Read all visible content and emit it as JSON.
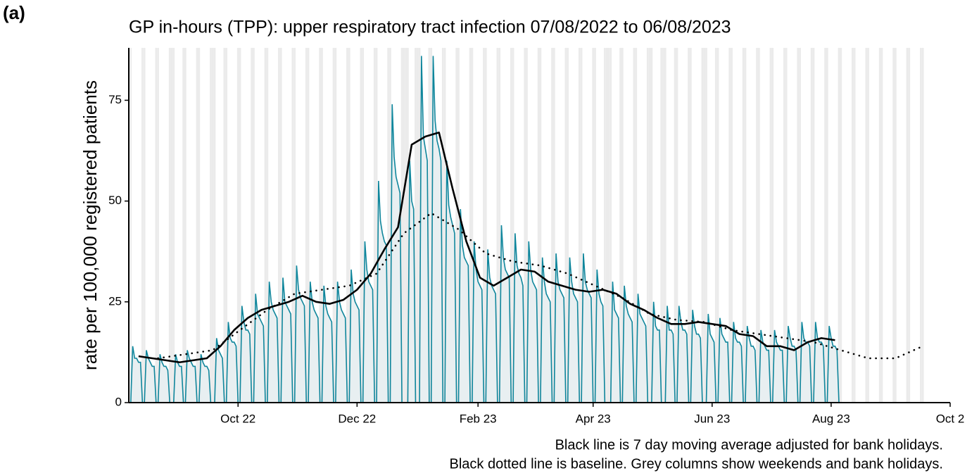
{
  "chart_data": {
    "type": "line",
    "panel_label": "(a)",
    "title": "GP in-hours (TPP): upper respiratory tract infection 07/08/2022 to 06/08/2023",
    "y_label": "rate per 100,000 registered patients",
    "notes": [
      "Black line is 7 day moving average adjusted for bank holidays.",
      "Black dotted line is baseline. Grey columns show weekends and bank holidays."
    ],
    "xlim": [
      "2022-08-06",
      "2023-10-01"
    ],
    "xticks": [
      {
        "value": "2022-10-01",
        "label": "Oct 22"
      },
      {
        "value": "2022-12-01",
        "label": "Dec 22"
      },
      {
        "value": "2023-02-01",
        "label": "Feb 23"
      },
      {
        "value": "2023-04-01",
        "label": "Apr 23"
      },
      {
        "value": "2023-06-01",
        "label": "Jun 23"
      },
      {
        "value": "2023-08-01",
        "label": "Aug 23"
      },
      {
        "value": "2023-10-01",
        "label": "Oct 2"
      }
    ],
    "ylim": [
      0,
      88
    ],
    "yticks": [
      0,
      25,
      50,
      75
    ],
    "shade_color": "#ebebeb",
    "series": [
      {
        "color": "#0f869c",
        "style": "daily",
        "x": [
          "2022-08-07",
          "2022-08-08",
          "2022-08-09",
          "2022-08-10",
          "2022-08-11",
          "2022-08-12",
          "2022-08-13",
          "2022-08-14",
          "2022-08-15",
          "2022-08-16",
          "2022-08-17",
          "2022-08-18",
          "2022-08-19",
          "2022-08-20",
          "2022-08-21",
          "2022-08-22",
          "2022-08-23",
          "2022-08-24",
          "2022-08-25",
          "2022-08-26",
          "2022-08-27",
          "2022-08-28",
          "2022-08-29",
          "2022-08-30",
          "2022-08-31",
          "2022-09-01",
          "2022-09-02",
          "2022-09-03",
          "2022-09-04",
          "2022-09-05",
          "2022-09-06",
          "2022-09-07",
          "2022-09-08",
          "2022-09-09",
          "2022-09-10",
          "2022-09-11",
          "2022-09-12",
          "2022-09-13",
          "2022-09-14",
          "2022-09-15",
          "2022-09-16",
          "2022-09-17",
          "2022-09-18",
          "2022-09-19",
          "2022-09-20",
          "2022-09-21",
          "2022-09-22",
          "2022-09-23",
          "2022-09-24",
          "2022-09-25",
          "2022-09-26",
          "2022-09-27",
          "2022-09-28",
          "2022-09-29",
          "2022-09-30",
          "2022-10-01",
          "2022-10-02",
          "2022-10-03",
          "2022-10-04",
          "2022-10-05",
          "2022-10-06",
          "2022-10-07",
          "2022-10-08",
          "2022-10-09",
          "2022-10-10",
          "2022-10-11",
          "2022-10-12",
          "2022-10-13",
          "2022-10-14",
          "2022-10-15",
          "2022-10-16",
          "2022-10-17",
          "2022-10-18",
          "2022-10-19",
          "2022-10-20",
          "2022-10-21",
          "2022-10-22",
          "2022-10-23",
          "2022-10-24",
          "2022-10-25",
          "2022-10-26",
          "2022-10-27",
          "2022-10-28",
          "2022-10-29",
          "2022-10-30",
          "2022-10-31",
          "2022-11-01",
          "2022-11-02",
          "2022-11-03",
          "2022-11-04",
          "2022-11-05",
          "2022-11-06",
          "2022-11-07",
          "2022-11-08",
          "2022-11-09",
          "2022-11-10",
          "2022-11-11",
          "2022-11-12",
          "2022-11-13",
          "2022-11-14",
          "2022-11-15",
          "2022-11-16",
          "2022-11-17",
          "2022-11-18",
          "2022-11-19",
          "2022-11-20",
          "2022-11-21",
          "2022-11-22",
          "2022-11-23",
          "2022-11-24",
          "2022-11-25",
          "2022-11-26",
          "2022-11-27",
          "2022-11-28",
          "2022-11-29",
          "2022-11-30",
          "2022-12-01",
          "2022-12-02",
          "2022-12-03",
          "2022-12-04",
          "2022-12-05",
          "2022-12-06",
          "2022-12-07",
          "2022-12-08",
          "2022-12-09",
          "2022-12-10",
          "2022-12-11",
          "2022-12-12",
          "2022-12-13",
          "2022-12-14",
          "2022-12-15",
          "2022-12-16",
          "2022-12-17",
          "2022-12-18",
          "2022-12-19",
          "2022-12-20",
          "2022-12-21",
          "2022-12-22",
          "2022-12-23",
          "2022-12-24",
          "2022-12-25",
          "2022-12-26",
          "2022-12-27",
          "2022-12-28",
          "2022-12-29",
          "2022-12-30",
          "2022-12-31",
          "2023-01-01",
          "2023-01-02",
          "2023-01-03",
          "2023-01-04",
          "2023-01-05",
          "2023-01-06",
          "2023-01-07",
          "2023-01-08",
          "2023-01-09",
          "2023-01-10",
          "2023-01-11",
          "2023-01-12",
          "2023-01-13",
          "2023-01-14",
          "2023-01-15",
          "2023-01-16",
          "2023-01-17",
          "2023-01-18",
          "2023-01-19",
          "2023-01-20",
          "2023-01-21",
          "2023-01-22",
          "2023-01-23",
          "2023-01-24",
          "2023-01-25",
          "2023-01-26",
          "2023-01-27",
          "2023-01-28",
          "2023-01-29",
          "2023-01-30",
          "2023-01-31",
          "2023-02-01",
          "2023-02-02",
          "2023-02-03",
          "2023-02-04",
          "2023-02-05",
          "2023-02-06",
          "2023-02-07",
          "2023-02-08",
          "2023-02-09",
          "2023-02-10",
          "2023-02-11",
          "2023-02-12",
          "2023-02-13",
          "2023-02-14",
          "2023-02-15",
          "2023-02-16",
          "2023-02-17",
          "2023-02-18",
          "2023-02-19",
          "2023-02-20",
          "2023-02-21",
          "2023-02-22",
          "2023-02-23",
          "2023-02-24",
          "2023-02-25",
          "2023-02-26",
          "2023-02-27",
          "2023-02-28",
          "2023-03-01",
          "2023-03-02",
          "2023-03-03",
          "2023-03-04",
          "2023-03-05",
          "2023-03-06",
          "2023-03-07",
          "2023-03-08",
          "2023-03-09",
          "2023-03-10",
          "2023-03-11",
          "2023-03-12",
          "2023-03-13",
          "2023-03-14",
          "2023-03-15",
          "2023-03-16",
          "2023-03-17",
          "2023-03-18",
          "2023-03-19",
          "2023-03-20",
          "2023-03-21",
          "2023-03-22",
          "2023-03-23",
          "2023-03-24",
          "2023-03-25",
          "2023-03-26",
          "2023-03-27",
          "2023-03-28",
          "2023-03-29",
          "2023-03-30",
          "2023-03-31",
          "2023-04-01",
          "2023-04-02",
          "2023-04-03",
          "2023-04-04",
          "2023-04-05",
          "2023-04-06",
          "2023-04-07",
          "2023-04-08",
          "2023-04-09",
          "2023-04-10",
          "2023-04-11",
          "2023-04-12",
          "2023-04-13",
          "2023-04-14",
          "2023-04-15",
          "2023-04-16",
          "2023-04-17",
          "2023-04-18",
          "2023-04-19",
          "2023-04-20",
          "2023-04-21",
          "2023-04-22",
          "2023-04-23",
          "2023-04-24",
          "2023-04-25",
          "2023-04-26",
          "2023-04-27",
          "2023-04-28",
          "2023-04-29",
          "2023-04-30",
          "2023-05-01",
          "2023-05-02",
          "2023-05-03",
          "2023-05-04",
          "2023-05-05",
          "2023-05-06",
          "2023-05-07",
          "2023-05-08",
          "2023-05-09",
          "2023-05-10",
          "2023-05-11",
          "2023-05-12",
          "2023-05-13",
          "2023-05-14",
          "2023-05-15",
          "2023-05-16",
          "2023-05-17",
          "2023-05-18",
          "2023-05-19",
          "2023-05-20",
          "2023-05-21",
          "2023-05-22",
          "2023-05-23",
          "2023-05-24",
          "2023-05-25",
          "2023-05-26",
          "2023-05-27",
          "2023-05-28",
          "2023-05-29",
          "2023-05-30",
          "2023-05-31",
          "2023-06-01",
          "2023-06-02",
          "2023-06-03",
          "2023-06-04",
          "2023-06-05",
          "2023-06-06",
          "2023-06-07",
          "2023-06-08",
          "2023-06-09",
          "2023-06-10",
          "2023-06-11",
          "2023-06-12",
          "2023-06-13",
          "2023-06-14",
          "2023-06-15",
          "2023-06-16",
          "2023-06-17",
          "2023-06-18",
          "2023-06-19",
          "2023-06-20",
          "2023-06-21",
          "2023-06-22",
          "2023-06-23",
          "2023-06-24",
          "2023-06-25",
          "2023-06-26",
          "2023-06-27",
          "2023-06-28",
          "2023-06-29",
          "2023-06-30",
          "2023-07-01",
          "2023-07-02",
          "2023-07-03",
          "2023-07-04",
          "2023-07-05",
          "2023-07-06",
          "2023-07-07",
          "2023-07-08",
          "2023-07-09",
          "2023-07-10",
          "2023-07-11",
          "2023-07-12",
          "2023-07-13",
          "2023-07-14",
          "2023-07-15",
          "2023-07-16",
          "2023-07-17",
          "2023-07-18",
          "2023-07-19",
          "2023-07-20",
          "2023-07-21",
          "2023-07-22",
          "2023-07-23",
          "2023-07-24",
          "2023-07-25",
          "2023-07-26",
          "2023-07-27",
          "2023-07-28",
          "2023-07-29",
          "2023-07-30",
          "2023-07-31",
          "2023-08-01",
          "2023-08-02",
          "2023-08-03",
          "2023-08-04",
          "2023-08-05",
          "2023-08-06"
        ],
        "values": [
          0,
          14,
          11,
          11,
          10,
          10,
          0,
          0,
          13,
          11,
          10,
          9,
          9,
          0,
          0,
          12,
          10,
          9,
          9,
          8,
          0,
          0,
          0,
          12,
          10,
          9,
          9,
          0,
          0,
          13,
          11,
          10,
          9,
          9,
          0,
          0,
          12,
          10,
          9,
          9,
          8,
          0,
          0,
          0,
          16,
          13,
          12,
          11,
          0,
          0,
          20,
          16,
          15,
          15,
          14,
          0,
          0,
          24,
          20,
          18,
          18,
          17,
          0,
          0,
          27,
          22,
          21,
          20,
          19,
          0,
          0,
          30,
          25,
          23,
          22,
          21,
          0,
          0,
          31,
          25,
          24,
          23,
          22,
          0,
          0,
          34,
          28,
          26,
          25,
          24,
          0,
          0,
          30,
          25,
          23,
          22,
          21,
          0,
          0,
          29,
          24,
          22,
          21,
          20,
          0,
          0,
          30,
          25,
          23,
          22,
          21,
          0,
          0,
          33,
          27,
          25,
          24,
          23,
          0,
          0,
          40,
          33,
          30,
          29,
          28,
          0,
          0,
          55,
          45,
          42,
          40,
          39,
          0,
          0,
          74,
          61,
          56,
          54,
          52,
          0,
          0,
          0,
          0,
          60,
          50,
          48,
          0,
          0,
          0,
          86,
          66,
          63,
          60,
          0,
          0,
          86,
          70,
          65,
          63,
          60,
          0,
          0,
          60,
          49,
          46,
          44,
          42,
          0,
          0,
          48,
          39,
          36,
          35,
          34,
          0,
          0,
          40,
          33,
          30,
          29,
          28,
          0,
          0,
          38,
          31,
          29,
          28,
          27,
          0,
          0,
          44,
          36,
          33,
          32,
          31,
          0,
          0,
          42,
          34,
          32,
          31,
          29,
          0,
          0,
          40,
          33,
          30,
          29,
          28,
          0,
          0,
          36,
          30,
          27,
          26,
          25,
          0,
          0,
          37,
          30,
          28,
          27,
          26,
          0,
          0,
          36,
          30,
          27,
          26,
          25,
          0,
          0,
          37,
          30,
          28,
          27,
          26,
          0,
          0,
          33,
          27,
          25,
          24,
          0,
          0,
          0,
          0,
          30,
          23,
          22,
          21,
          0,
          0,
          29,
          24,
          22,
          21,
          20,
          0,
          0,
          27,
          22,
          21,
          20,
          19,
          0,
          0,
          0,
          25,
          19,
          18,
          18,
          0,
          0,
          0,
          24,
          18,
          18,
          17,
          0,
          0,
          24,
          20,
          18,
          18,
          17,
          0,
          0,
          23,
          19,
          17,
          17,
          16,
          0,
          0,
          0,
          22,
          17,
          16,
          15,
          0,
          0,
          21,
          17,
          16,
          15,
          15,
          0,
          0,
          20,
          16,
          15,
          15,
          14,
          0,
          0,
          19,
          16,
          14,
          14,
          13,
          0,
          0,
          18,
          15,
          14,
          13,
          13,
          0,
          0,
          18,
          15,
          14,
          13,
          13,
          0,
          0,
          19,
          16,
          14,
          14,
          13,
          0,
          0,
          20,
          16,
          15,
          15,
          14,
          0,
          0,
          20,
          16,
          15,
          15,
          14,
          0,
          0,
          19,
          16,
          14,
          14,
          13,
          0,
          0
        ]
      },
      {
        "color": "#000000",
        "style": "solid",
        "x": [
          "2022-08-11",
          "2022-08-18",
          "2022-08-25",
          "2022-09-01",
          "2022-09-08",
          "2022-09-15",
          "2022-09-22",
          "2022-09-29",
          "2022-10-06",
          "2022-10-13",
          "2022-10-20",
          "2022-10-27",
          "2022-11-03",
          "2022-11-10",
          "2022-11-17",
          "2022-11-24",
          "2022-12-01",
          "2022-12-08",
          "2022-12-15",
          "2022-12-22",
          "2022-12-29",
          "2023-01-05",
          "2023-01-12",
          "2023-01-19",
          "2023-01-26",
          "2023-02-02",
          "2023-02-09",
          "2023-02-16",
          "2023-02-23",
          "2023-03-02",
          "2023-03-09",
          "2023-03-16",
          "2023-03-23",
          "2023-03-30",
          "2023-04-06",
          "2023-04-13",
          "2023-04-20",
          "2023-04-27",
          "2023-05-04",
          "2023-05-11",
          "2023-05-18",
          "2023-05-25",
          "2023-06-01",
          "2023-06-08",
          "2023-06-15",
          "2023-06-22",
          "2023-06-29",
          "2023-07-06",
          "2023-07-13",
          "2023-07-20",
          "2023-07-27",
          "2023-08-03"
        ],
        "values": [
          11.5,
          11,
          10.5,
          10,
          10.5,
          11,
          14,
          18,
          21,
          23,
          24,
          25,
          26.5,
          25,
          24.5,
          25.5,
          28,
          32,
          38,
          43.5,
          64,
          66,
          67,
          53,
          40,
          31,
          29,
          31,
          33,
          32.5,
          30,
          29,
          28,
          27.5,
          28,
          27,
          24.5,
          23,
          21,
          19.5,
          19.5,
          20,
          19.5,
          19,
          17,
          16.5,
          14,
          14,
          13,
          15,
          16,
          15.5
        ]
      },
      {
        "color": "#000000",
        "style": "dotted",
        "x": [
          "2022-08-21",
          "2022-09-04",
          "2022-09-18",
          "2022-10-02",
          "2022-10-16",
          "2022-10-30",
          "2022-11-13",
          "2022-11-27",
          "2022-12-11",
          "2022-12-25",
          "2023-01-08",
          "2023-01-22",
          "2023-02-05",
          "2023-02-19",
          "2023-03-05",
          "2023-03-19",
          "2023-04-02",
          "2023-04-16",
          "2023-04-30",
          "2023-05-14",
          "2023-05-28",
          "2023-06-11",
          "2023-06-25",
          "2023-07-09",
          "2023-07-23",
          "2023-08-06",
          "2023-08-20",
          "2023-09-03",
          "2023-09-17"
        ],
        "values": [
          11,
          12,
          13,
          18,
          23,
          27,
          28,
          29,
          32,
          42,
          47,
          43,
          37,
          35,
          34,
          32,
          29,
          26,
          22,
          20.5,
          20,
          18,
          17,
          16,
          15,
          13,
          11,
          11,
          14
        ]
      }
    ]
  }
}
